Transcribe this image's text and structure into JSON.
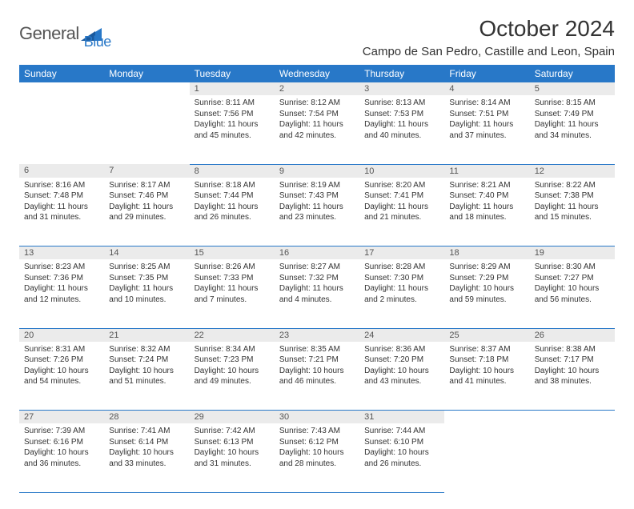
{
  "brand": {
    "name_part1": "General",
    "name_part2": "Blue",
    "color_primary": "#2878c8",
    "color_text": "#555555"
  },
  "title": "October 2024",
  "location": "Campo de San Pedro, Castille and Leon, Spain",
  "colors": {
    "header_bg": "#2878c8",
    "header_text": "#ffffff",
    "daynum_bg": "#ebebeb",
    "cell_border": "#2878c8",
    "body_text": "#333333"
  },
  "days_of_week": [
    "Sunday",
    "Monday",
    "Tuesday",
    "Wednesday",
    "Thursday",
    "Friday",
    "Saturday"
  ],
  "weeks": [
    {
      "nums": [
        "",
        "",
        "1",
        "2",
        "3",
        "4",
        "5"
      ],
      "cells": [
        null,
        null,
        {
          "sunrise": "Sunrise: 8:11 AM",
          "sunset": "Sunset: 7:56 PM",
          "day1": "Daylight: 11 hours",
          "day2": "and 45 minutes."
        },
        {
          "sunrise": "Sunrise: 8:12 AM",
          "sunset": "Sunset: 7:54 PM",
          "day1": "Daylight: 11 hours",
          "day2": "and 42 minutes."
        },
        {
          "sunrise": "Sunrise: 8:13 AM",
          "sunset": "Sunset: 7:53 PM",
          "day1": "Daylight: 11 hours",
          "day2": "and 40 minutes."
        },
        {
          "sunrise": "Sunrise: 8:14 AM",
          "sunset": "Sunset: 7:51 PM",
          "day1": "Daylight: 11 hours",
          "day2": "and 37 minutes."
        },
        {
          "sunrise": "Sunrise: 8:15 AM",
          "sunset": "Sunset: 7:49 PM",
          "day1": "Daylight: 11 hours",
          "day2": "and 34 minutes."
        }
      ]
    },
    {
      "nums": [
        "6",
        "7",
        "8",
        "9",
        "10",
        "11",
        "12"
      ],
      "cells": [
        {
          "sunrise": "Sunrise: 8:16 AM",
          "sunset": "Sunset: 7:48 PM",
          "day1": "Daylight: 11 hours",
          "day2": "and 31 minutes."
        },
        {
          "sunrise": "Sunrise: 8:17 AM",
          "sunset": "Sunset: 7:46 PM",
          "day1": "Daylight: 11 hours",
          "day2": "and 29 minutes."
        },
        {
          "sunrise": "Sunrise: 8:18 AM",
          "sunset": "Sunset: 7:44 PM",
          "day1": "Daylight: 11 hours",
          "day2": "and 26 minutes."
        },
        {
          "sunrise": "Sunrise: 8:19 AM",
          "sunset": "Sunset: 7:43 PM",
          "day1": "Daylight: 11 hours",
          "day2": "and 23 minutes."
        },
        {
          "sunrise": "Sunrise: 8:20 AM",
          "sunset": "Sunset: 7:41 PM",
          "day1": "Daylight: 11 hours",
          "day2": "and 21 minutes."
        },
        {
          "sunrise": "Sunrise: 8:21 AM",
          "sunset": "Sunset: 7:40 PM",
          "day1": "Daylight: 11 hours",
          "day2": "and 18 minutes."
        },
        {
          "sunrise": "Sunrise: 8:22 AM",
          "sunset": "Sunset: 7:38 PM",
          "day1": "Daylight: 11 hours",
          "day2": "and 15 minutes."
        }
      ]
    },
    {
      "nums": [
        "13",
        "14",
        "15",
        "16",
        "17",
        "18",
        "19"
      ],
      "cells": [
        {
          "sunrise": "Sunrise: 8:23 AM",
          "sunset": "Sunset: 7:36 PM",
          "day1": "Daylight: 11 hours",
          "day2": "and 12 minutes."
        },
        {
          "sunrise": "Sunrise: 8:25 AM",
          "sunset": "Sunset: 7:35 PM",
          "day1": "Daylight: 11 hours",
          "day2": "and 10 minutes."
        },
        {
          "sunrise": "Sunrise: 8:26 AM",
          "sunset": "Sunset: 7:33 PM",
          "day1": "Daylight: 11 hours",
          "day2": "and 7 minutes."
        },
        {
          "sunrise": "Sunrise: 8:27 AM",
          "sunset": "Sunset: 7:32 PM",
          "day1": "Daylight: 11 hours",
          "day2": "and 4 minutes."
        },
        {
          "sunrise": "Sunrise: 8:28 AM",
          "sunset": "Sunset: 7:30 PM",
          "day1": "Daylight: 11 hours",
          "day2": "and 2 minutes."
        },
        {
          "sunrise": "Sunrise: 8:29 AM",
          "sunset": "Sunset: 7:29 PM",
          "day1": "Daylight: 10 hours",
          "day2": "and 59 minutes."
        },
        {
          "sunrise": "Sunrise: 8:30 AM",
          "sunset": "Sunset: 7:27 PM",
          "day1": "Daylight: 10 hours",
          "day2": "and 56 minutes."
        }
      ]
    },
    {
      "nums": [
        "20",
        "21",
        "22",
        "23",
        "24",
        "25",
        "26"
      ],
      "cells": [
        {
          "sunrise": "Sunrise: 8:31 AM",
          "sunset": "Sunset: 7:26 PM",
          "day1": "Daylight: 10 hours",
          "day2": "and 54 minutes."
        },
        {
          "sunrise": "Sunrise: 8:32 AM",
          "sunset": "Sunset: 7:24 PM",
          "day1": "Daylight: 10 hours",
          "day2": "and 51 minutes."
        },
        {
          "sunrise": "Sunrise: 8:34 AM",
          "sunset": "Sunset: 7:23 PM",
          "day1": "Daylight: 10 hours",
          "day2": "and 49 minutes."
        },
        {
          "sunrise": "Sunrise: 8:35 AM",
          "sunset": "Sunset: 7:21 PM",
          "day1": "Daylight: 10 hours",
          "day2": "and 46 minutes."
        },
        {
          "sunrise": "Sunrise: 8:36 AM",
          "sunset": "Sunset: 7:20 PM",
          "day1": "Daylight: 10 hours",
          "day2": "and 43 minutes."
        },
        {
          "sunrise": "Sunrise: 8:37 AM",
          "sunset": "Sunset: 7:18 PM",
          "day1": "Daylight: 10 hours",
          "day2": "and 41 minutes."
        },
        {
          "sunrise": "Sunrise: 8:38 AM",
          "sunset": "Sunset: 7:17 PM",
          "day1": "Daylight: 10 hours",
          "day2": "and 38 minutes."
        }
      ]
    },
    {
      "nums": [
        "27",
        "28",
        "29",
        "30",
        "31",
        "",
        ""
      ],
      "cells": [
        {
          "sunrise": "Sunrise: 7:39 AM",
          "sunset": "Sunset: 6:16 PM",
          "day1": "Daylight: 10 hours",
          "day2": "and 36 minutes."
        },
        {
          "sunrise": "Sunrise: 7:41 AM",
          "sunset": "Sunset: 6:14 PM",
          "day1": "Daylight: 10 hours",
          "day2": "and 33 minutes."
        },
        {
          "sunrise": "Sunrise: 7:42 AM",
          "sunset": "Sunset: 6:13 PM",
          "day1": "Daylight: 10 hours",
          "day2": "and 31 minutes."
        },
        {
          "sunrise": "Sunrise: 7:43 AM",
          "sunset": "Sunset: 6:12 PM",
          "day1": "Daylight: 10 hours",
          "day2": "and 28 minutes."
        },
        {
          "sunrise": "Sunrise: 7:44 AM",
          "sunset": "Sunset: 6:10 PM",
          "day1": "Daylight: 10 hours",
          "day2": "and 26 minutes."
        },
        null,
        null
      ]
    }
  ]
}
